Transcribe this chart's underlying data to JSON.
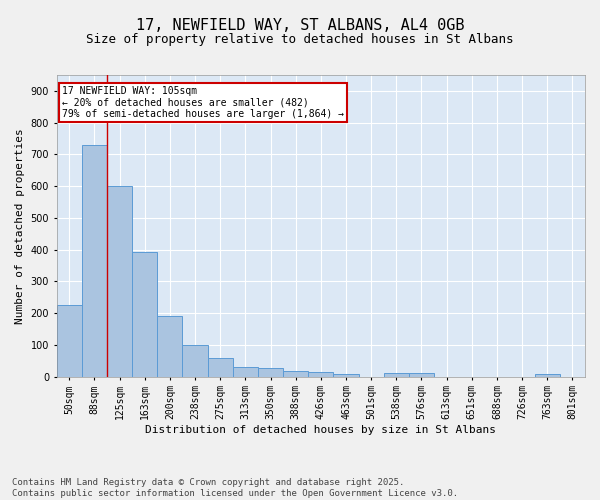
{
  "title1": "17, NEWFIELD WAY, ST ALBANS, AL4 0GB",
  "title2": "Size of property relative to detached houses in St Albans",
  "xlabel": "Distribution of detached houses by size in St Albans",
  "ylabel": "Number of detached properties",
  "categories": [
    "50sqm",
    "88sqm",
    "125sqm",
    "163sqm",
    "200sqm",
    "238sqm",
    "275sqm",
    "313sqm",
    "350sqm",
    "388sqm",
    "426sqm",
    "463sqm",
    "501sqm",
    "538sqm",
    "576sqm",
    "613sqm",
    "651sqm",
    "688sqm",
    "726sqm",
    "763sqm",
    "801sqm"
  ],
  "values": [
    225,
    730,
    600,
    393,
    190,
    100,
    60,
    30,
    28,
    18,
    15,
    8,
    0,
    12,
    10,
    0,
    0,
    0,
    0,
    8,
    0
  ],
  "bar_color": "#aac4e0",
  "bar_edge_color": "#5b9bd5",
  "vline_color": "#cc0000",
  "annotation_box_text": "17 NEWFIELD WAY: 105sqm\n← 20% of detached houses are smaller (482)\n79% of semi-detached houses are larger (1,864) →",
  "annotation_box_color": "#cc0000",
  "background_color": "#dce8f5",
  "grid_color": "#ffffff",
  "fig_background_color": "#f0f0f0",
  "footer_text": "Contains HM Land Registry data © Crown copyright and database right 2025.\nContains public sector information licensed under the Open Government Licence v3.0.",
  "ylim": [
    0,
    950
  ],
  "yticks": [
    0,
    100,
    200,
    300,
    400,
    500,
    600,
    700,
    800,
    900
  ],
  "title1_fontsize": 11,
  "title2_fontsize": 9,
  "xlabel_fontsize": 8,
  "ylabel_fontsize": 8,
  "tick_fontsize": 7,
  "annotation_fontsize": 7,
  "footer_fontsize": 6.5
}
